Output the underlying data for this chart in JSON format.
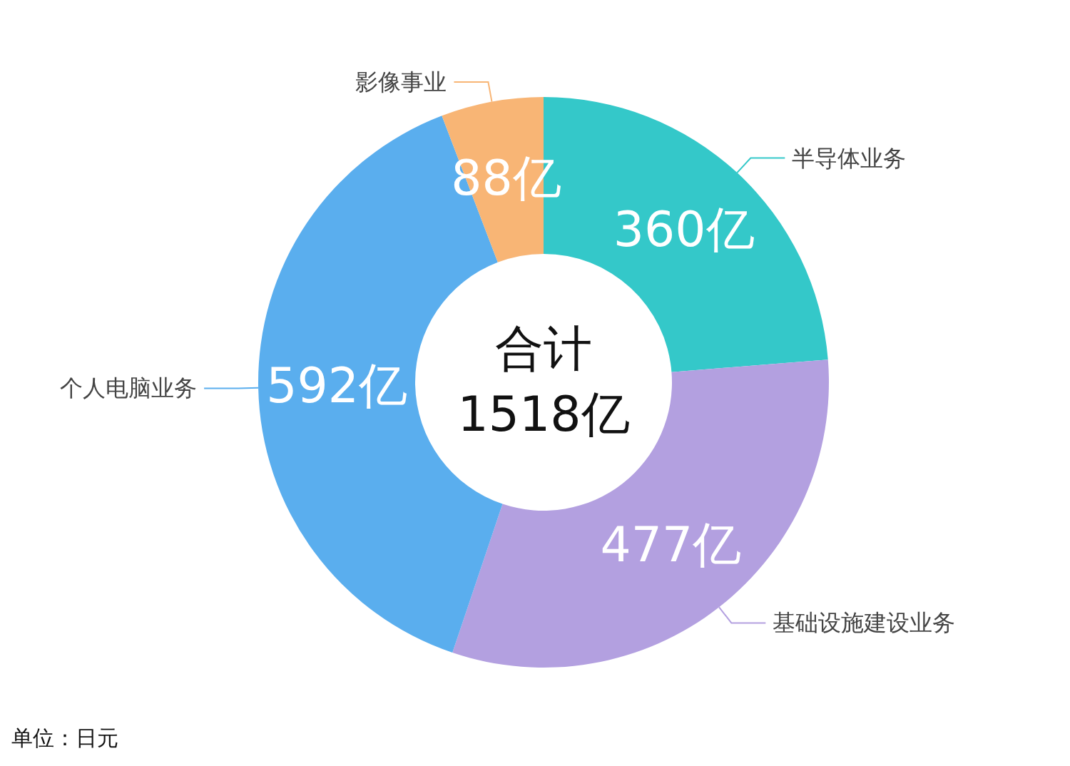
{
  "chart_data": {
    "type": "donut",
    "categories": [
      "半导体业务",
      "基础设施建设业务",
      "个人电脑业务",
      "影像事业"
    ],
    "values": [
      360,
      477,
      592,
      88
    ],
    "colors": [
      "#34c8c9",
      "#b3a0e0",
      "#5aaeee",
      "#f8b575"
    ],
    "value_labels": [
      "360亿",
      "477亿",
      "592亿",
      "88亿"
    ],
    "annotations": [
      "合计\n1518亿",
      "单位：日元"
    ]
  }
}
